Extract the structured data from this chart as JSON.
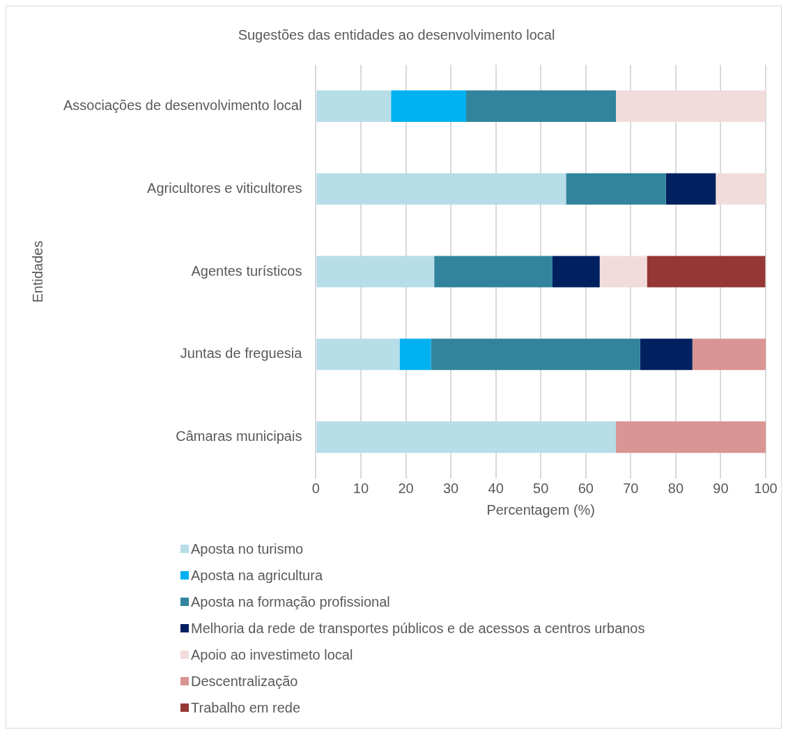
{
  "chart_data": {
    "type": "bar",
    "orientation": "horizontal",
    "stacked": true,
    "title": "Sugestões das entidades ao desenvolvimento local",
    "xlabel": "Percentagem (%)",
    "ylabel": "Entidades",
    "categories": [
      "Associações de desenvolvimento local",
      "Agricultores e viticultores",
      "Agentes turísticos",
      "Juntas de freguesia",
      "Câmaras municipais"
    ],
    "xlim": [
      0,
      100
    ],
    "xticks": [
      0,
      10,
      20,
      30,
      40,
      50,
      60,
      70,
      80,
      90,
      100
    ],
    "grid": "x",
    "legend": "bottom",
    "series": [
      {
        "name": "Aposta no turismo",
        "color": "#b7dde8",
        "values": [
          16.7,
          55.6,
          26.3,
          18.6,
          66.7
        ]
      },
      {
        "name": "Aposta na agricultura",
        "color": "#00b0f0",
        "values": [
          16.7,
          null,
          null,
          7.0,
          null
        ]
      },
      {
        "name": "Aposta na formação profissional",
        "color": "#31849b",
        "values": [
          33.3,
          22.2,
          26.3,
          46.5,
          null
        ]
      },
      {
        "name": "Melhoria da rede de transportes públicos e de acessos a centros urbanos",
        "color": "#002060",
        "values": [
          null,
          11.1,
          10.5,
          11.6,
          null
        ]
      },
      {
        "name": "Apoio ao investimeto local",
        "color": "#f2dcdb",
        "values": [
          33.3,
          11.1,
          10.5,
          null,
          null
        ]
      },
      {
        "name": "Descentralização",
        "color": "#d99594",
        "values": [
          null,
          null,
          null,
          16.3,
          33.3
        ]
      },
      {
        "name": "Trabalho em rede",
        "color": "#953735",
        "values": [
          null,
          null,
          26.3,
          null,
          null
        ]
      }
    ]
  }
}
